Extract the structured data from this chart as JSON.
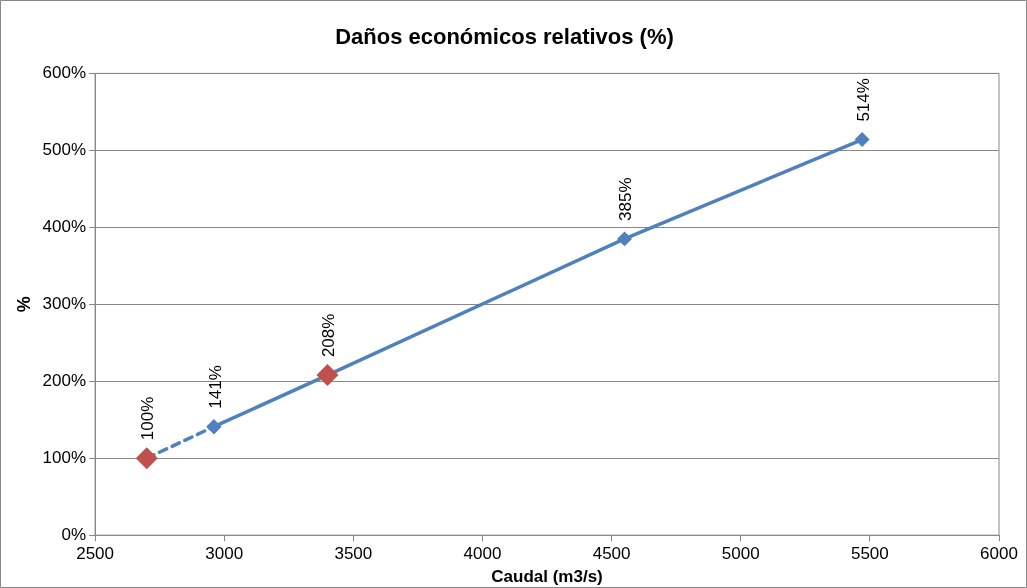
{
  "chart_data": {
    "type": "line",
    "title": "Daños económicos relativos (%)",
    "xlabel": "Caudal (m3/s)",
    "ylabel": "%",
    "xlim": [
      2500,
      6000
    ],
    "xticks": [
      2500,
      3000,
      3500,
      4000,
      4500,
      5000,
      5500,
      6000
    ],
    "ylim": [
      0,
      600
    ],
    "yticks": [
      {
        "value": 0,
        "label": "0%"
      },
      {
        "value": 100,
        "label": "100%"
      },
      {
        "value": 200,
        "label": "200%"
      },
      {
        "value": 300,
        "label": "300%"
      },
      {
        "value": 400,
        "label": "400%"
      },
      {
        "value": 500,
        "label": "500%"
      },
      {
        "value": 600,
        "label": "600%"
      }
    ],
    "grid": "y",
    "legend": false,
    "series": [
      {
        "color": "#4f81bd",
        "line_style": "dashed",
        "marker": "diamond",
        "x": [
          2700,
          2960
        ],
        "values": [
          100,
          141
        ],
        "value_labels": [
          "100%",
          null
        ]
      },
      {
        "color": "#4f81bd",
        "line_style": "solid",
        "marker": "diamond",
        "x": [
          2960,
          3400,
          4550,
          5470
        ],
        "values": [
          141,
          208,
          385,
          514
        ],
        "value_labels": [
          "141%",
          "208%",
          "385%",
          "514%"
        ]
      },
      {
        "type": "scatter",
        "color": "#c0504d",
        "marker": "diamond",
        "x": [
          2700,
          3400
        ],
        "values": [
          100,
          208
        ]
      }
    ]
  }
}
